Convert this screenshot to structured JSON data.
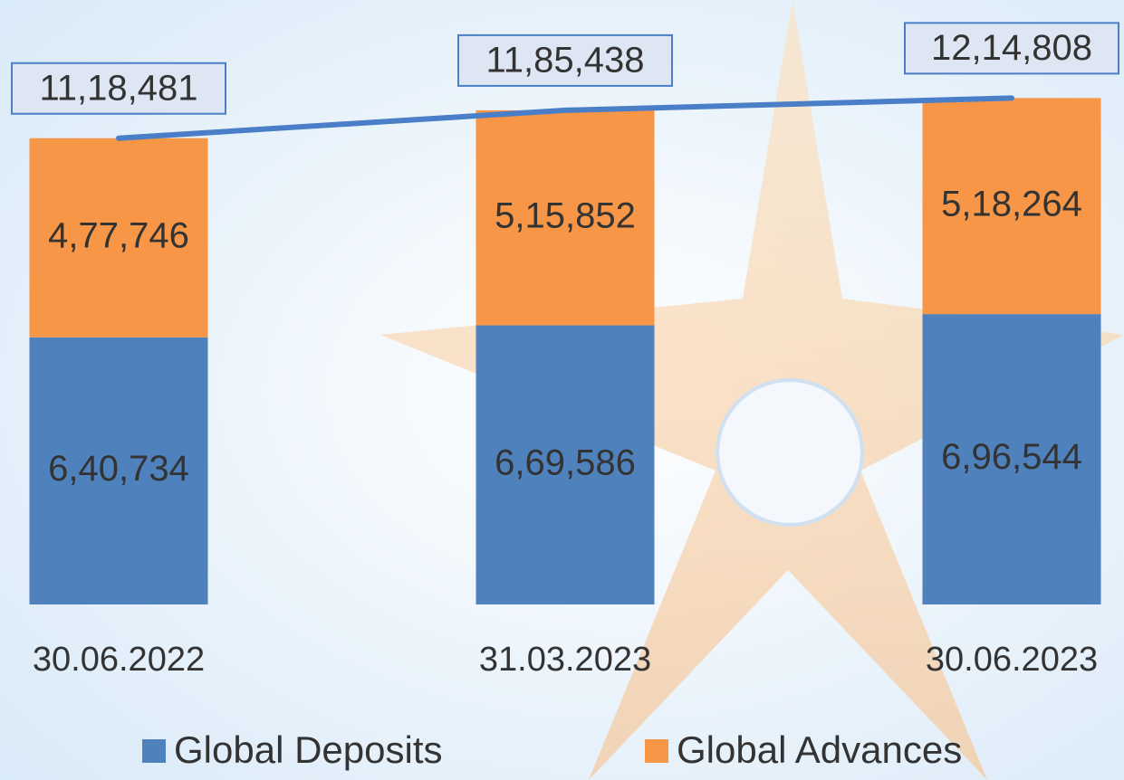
{
  "chart_data": {
    "type": "bar",
    "stacked": true,
    "categories": [
      "30.06.2022",
      "31.03.2023",
      "30.06.2023"
    ],
    "series": [
      {
        "name": "Global Deposits",
        "color": "#4f81bd",
        "values": [
          640734,
          669586,
          696544
        ],
        "value_labels": [
          "6,40,734",
          "6,69,586",
          "6,96,544"
        ]
      },
      {
        "name": "Global Advances",
        "color": "#f79646",
        "values": [
          477746,
          515852,
          518264
        ],
        "value_labels": [
          "4,77,746",
          "5,15,852",
          "5,18,264"
        ]
      },
      {
        "type": "line",
        "color": "#4a7fc8",
        "values": [
          1118481,
          1185438,
          1214808
        ],
        "value_labels": [
          "11,18,481",
          "11,85,438",
          "12,14,808"
        ]
      }
    ],
    "ylim": [
      0,
      1450000
    ],
    "legend": "bottom"
  }
}
